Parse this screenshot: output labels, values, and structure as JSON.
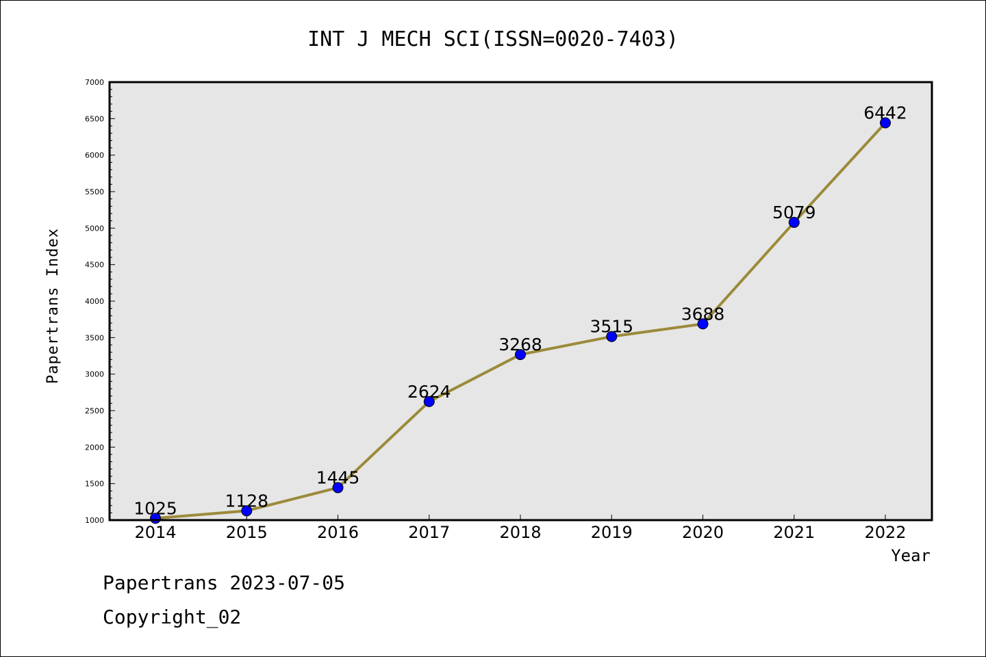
{
  "chart_data": {
    "type": "line",
    "title": "INT J MECH SCI(ISSN=0020-7403)",
    "xlabel": "Year",
    "ylabel": "Papertrans Index",
    "categories": [
      "2014",
      "2015",
      "2016",
      "2017",
      "2018",
      "2019",
      "2020",
      "2021",
      "2022"
    ],
    "series": [
      {
        "values": [
          1025,
          1128,
          1445,
          2624,
          3268,
          3515,
          3688,
          5079,
          6442
        ]
      }
    ],
    "ylim": [
      1000,
      7000
    ],
    "yticks": [
      "1000",
      "1500",
      "2000",
      "2500",
      "3000",
      "3500",
      "4000",
      "4500",
      "5000",
      "5500",
      "6000",
      "6500",
      "7000"
    ],
    "grid": false,
    "line_color": "#9b8a3a",
    "marker_color": "#0000ff",
    "plot_background": "#e6e6e6"
  },
  "footer": {
    "source": "Papertrans 2023-07-05",
    "copyright": "Copyright_02"
  }
}
